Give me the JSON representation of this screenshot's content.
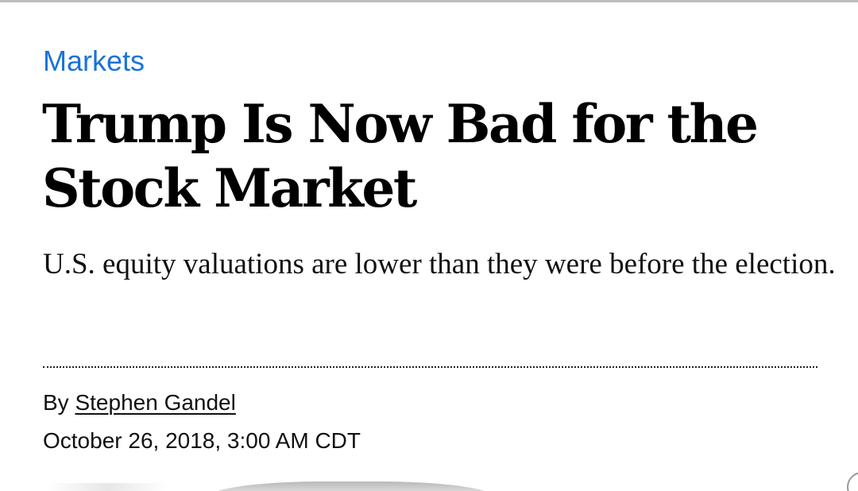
{
  "article": {
    "section": "Markets",
    "headline": "Trump Is Now Bad for the Stock Market",
    "dek": "U.S. equity valuations are lower than they were before the election.",
    "byline": {
      "prefix": "By",
      "author": "Stephen Gandel"
    },
    "date": "October 26, 2018, 3:00 AM CDT"
  },
  "colors": {
    "section_link": "#1a73d9",
    "text": "#000000",
    "divider": "#222222",
    "background": "#ffffff"
  }
}
